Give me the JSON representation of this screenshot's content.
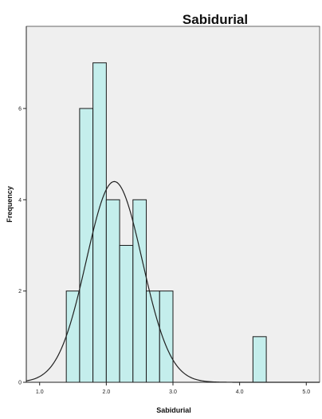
{
  "chart_data": {
    "type": "bar",
    "title": "Sabidurial",
    "xlabel": "Sabidurial",
    "ylabel": "Frequency",
    "xlim": [
      0.8,
      5.2
    ],
    "ylim": [
      0,
      7.8
    ],
    "x_ticks": [
      "1.0",
      "2.0",
      "3.0",
      "4.0",
      "5.0"
    ],
    "x_tick_values": [
      1.0,
      2.0,
      3.0,
      4.0,
      5.0
    ],
    "y_ticks": [
      "0",
      "2",
      "4",
      "6"
    ],
    "y_tick_values": [
      0,
      2,
      4,
      6
    ],
    "bins": [
      {
        "x0": 1.4,
        "x1": 1.6,
        "count": 2
      },
      {
        "x0": 1.6,
        "x1": 1.8,
        "count": 6
      },
      {
        "x0": 1.8,
        "x1": 2.0,
        "count": 7
      },
      {
        "x0": 2.0,
        "x1": 2.2,
        "count": 4
      },
      {
        "x0": 2.2,
        "x1": 2.4,
        "count": 3
      },
      {
        "x0": 2.4,
        "x1": 2.6,
        "count": 4
      },
      {
        "x0": 2.6,
        "x1": 2.8,
        "count": 2
      },
      {
        "x0": 2.8,
        "x1": 3.0,
        "count": 2
      },
      {
        "x0": 4.2,
        "x1": 4.4,
        "count": 1
      }
    ],
    "normal_curve": {
      "mean": 2.12,
      "sd": 0.42,
      "peak": 4.4
    },
    "grid": false,
    "colors": {
      "bar_fill": "#c4eeec",
      "bar_stroke": "#1a1a1a",
      "plot_background": "#efefef",
      "curve": "#222222"
    }
  }
}
